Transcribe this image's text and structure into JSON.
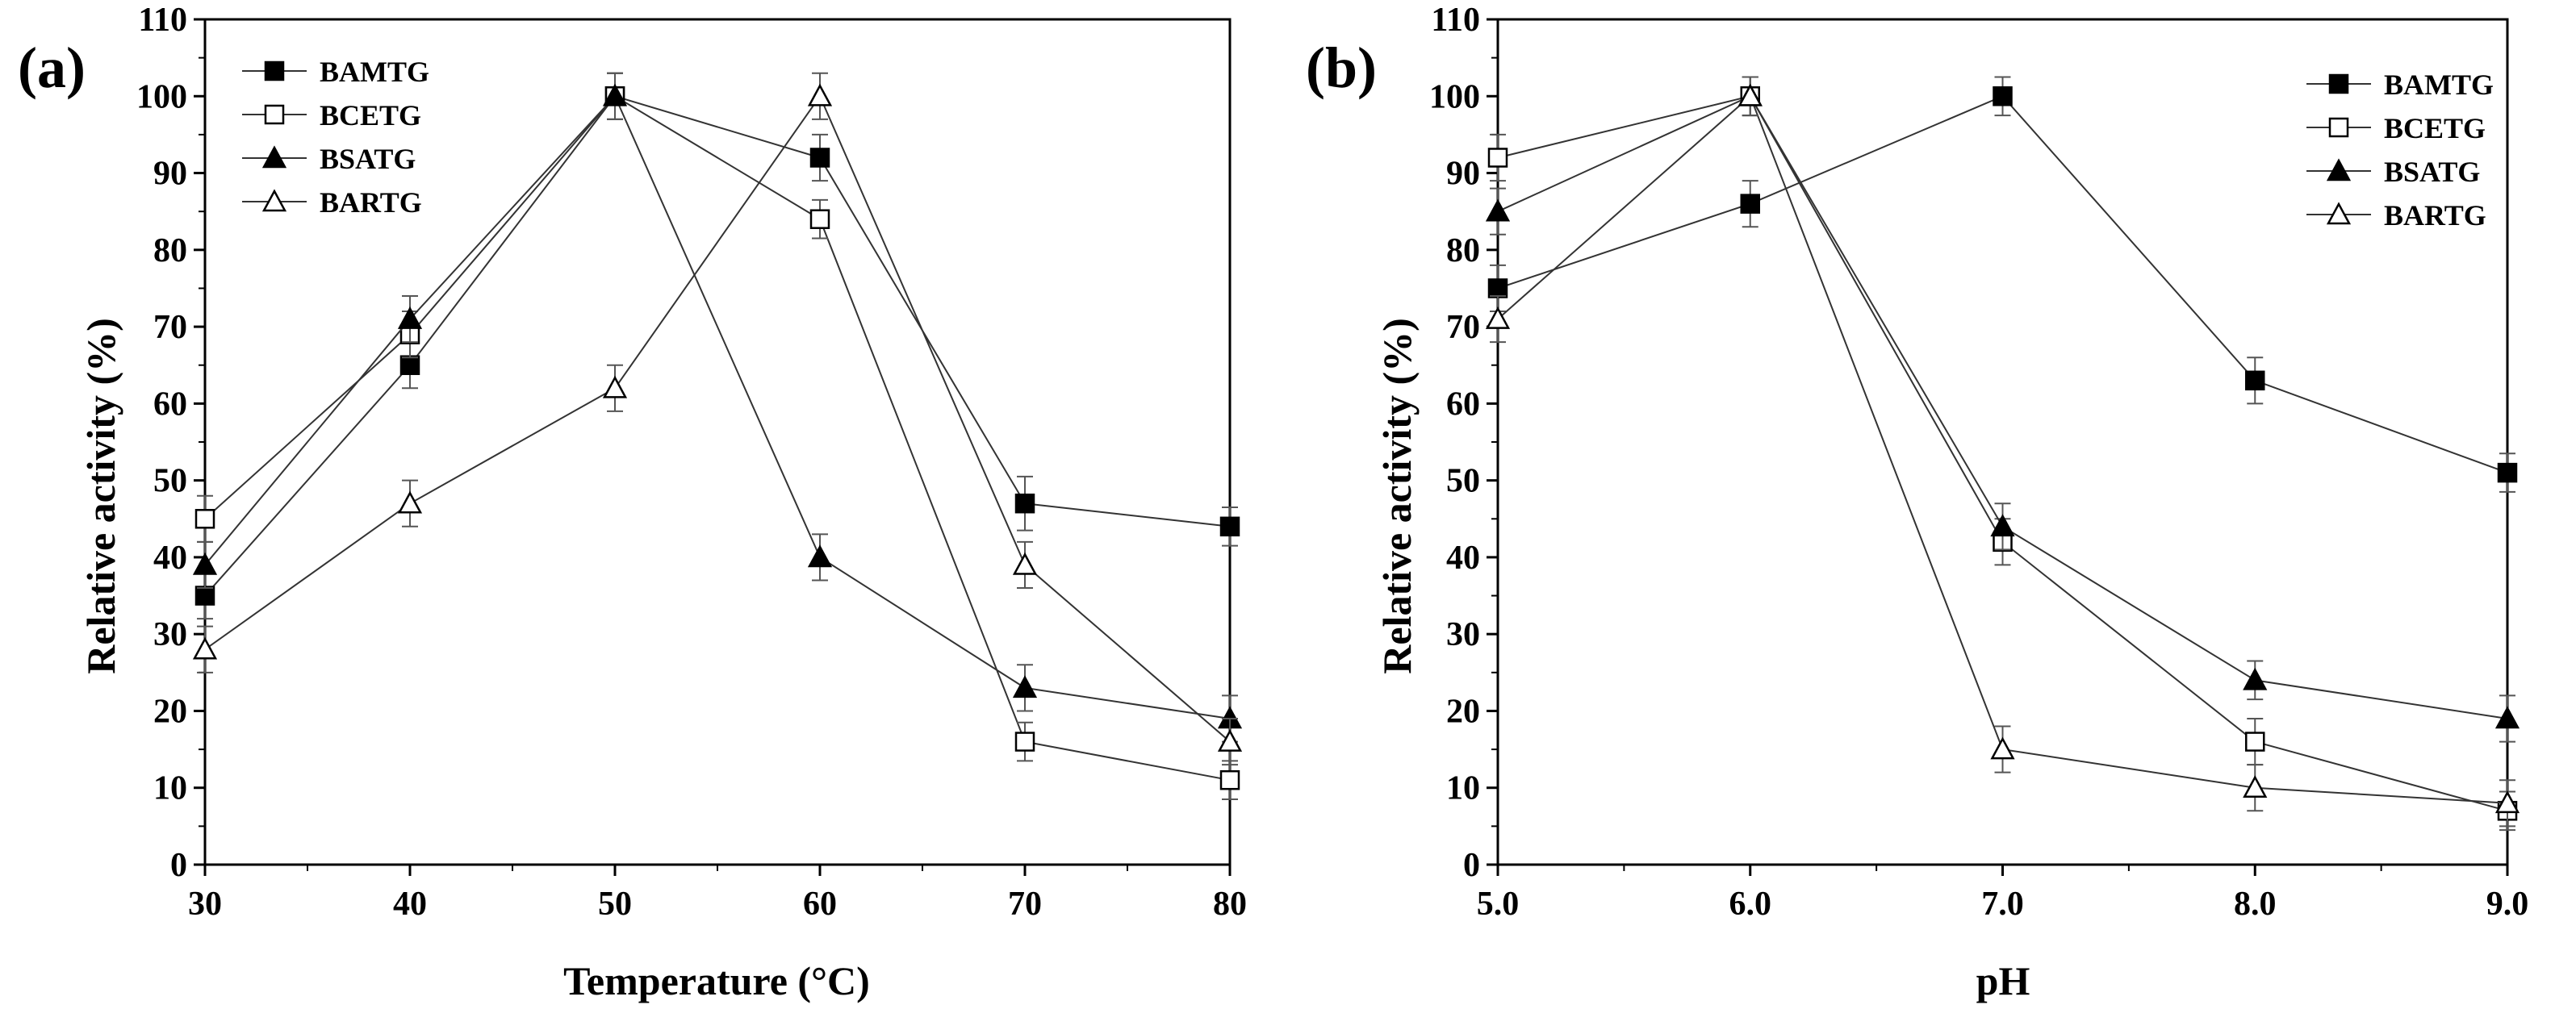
{
  "chart_data": [
    {
      "type": "line",
      "panel_label": "(a)",
      "xlabel": "Temperature (°C)",
      "ylabel": "Relative activity (%)",
      "x": [
        30,
        40,
        50,
        60,
        70,
        80
      ],
      "x_tick_labels": [
        "30",
        "40",
        "50",
        "60",
        "70",
        "80"
      ],
      "xlim": [
        30,
        80
      ],
      "ylim": [
        0,
        110
      ],
      "y_ticks": [
        0,
        10,
        20,
        30,
        40,
        50,
        60,
        70,
        80,
        90,
        100,
        110
      ],
      "legend_position": "top-left",
      "series": [
        {
          "name": "BAMTG",
          "marker": "square-filled",
          "values": [
            35,
            65,
            100,
            92,
            47,
            44
          ],
          "errors": [
            3,
            3,
            3,
            3,
            3.5,
            2.5
          ]
        },
        {
          "name": "BCETG",
          "marker": "square-open",
          "values": [
            45,
            69,
            100,
            84,
            16,
            11
          ],
          "errors": [
            3,
            3,
            3,
            2.5,
            2.5,
            2.5
          ]
        },
        {
          "name": "BSATG",
          "marker": "triangle-filled",
          "values": [
            39,
            71,
            100,
            40,
            23,
            19
          ],
          "errors": [
            3,
            3,
            3,
            3,
            3,
            3
          ]
        },
        {
          "name": "BARTG",
          "marker": "triangle-open",
          "values": [
            28,
            47,
            62,
            100,
            39,
            16
          ],
          "errors": [
            3,
            3,
            3,
            3,
            3,
            3
          ]
        }
      ]
    },
    {
      "type": "line",
      "panel_label": "(b)",
      "xlabel": "pH",
      "ylabel": "Relative activity (%)",
      "x": [
        5.0,
        6.0,
        7.0,
        8.0,
        9.0
      ],
      "x_tick_labels": [
        "5.0",
        "6.0",
        "7.0",
        "8.0",
        "9.0"
      ],
      "xlim": [
        5.0,
        9.0
      ],
      "ylim": [
        0,
        110
      ],
      "y_ticks": [
        0,
        10,
        20,
        30,
        40,
        50,
        60,
        70,
        80,
        90,
        100,
        110
      ],
      "legend_position": "top-right",
      "series": [
        {
          "name": "BAMTG",
          "marker": "square-filled",
          "values": [
            75,
            86,
            100,
            63,
            51
          ],
          "errors": [
            3,
            3,
            2.5,
            3,
            2.5
          ]
        },
        {
          "name": "BCETG",
          "marker": "square-open",
          "values": [
            92,
            100,
            42,
            16,
            7
          ],
          "errors": [
            3,
            2.5,
            3,
            3,
            2.5
          ]
        },
        {
          "name": "BSATG",
          "marker": "triangle-filled",
          "values": [
            85,
            100,
            44,
            24,
            19
          ],
          "errors": [
            3,
            2.5,
            3,
            2.5,
            3
          ]
        },
        {
          "name": "BARTG",
          "marker": "triangle-open",
          "values": [
            71,
            100,
            15,
            10,
            8
          ],
          "errors": [
            3,
            2.5,
            3,
            3,
            3
          ]
        }
      ]
    }
  ]
}
